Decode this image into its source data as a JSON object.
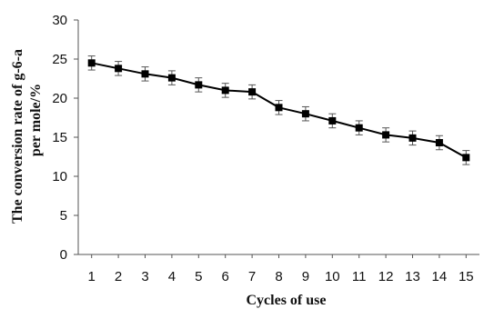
{
  "chart_data": {
    "type": "line",
    "title": "",
    "xlabel": "Cycles of use",
    "ylabel_line1": "The conversion rate of g-6-a",
    "ylabel_line2": "per mole/%",
    "x": [
      1,
      2,
      3,
      4,
      5,
      6,
      7,
      8,
      9,
      10,
      11,
      12,
      13,
      14,
      15
    ],
    "xlim": [
      0.5,
      15.5
    ],
    "ylim": [
      0,
      30
    ],
    "yticks": [
      0,
      5,
      10,
      15,
      20,
      25,
      30
    ],
    "grid": false,
    "legend": "none",
    "series": [
      {
        "values": [
          24.5,
          23.8,
          23.1,
          22.6,
          21.7,
          21.0,
          20.8,
          18.8,
          18.0,
          17.1,
          16.2,
          15.3,
          14.9,
          14.3,
          12.4
        ],
        "error": [
          0.9,
          0.9,
          0.9,
          0.9,
          0.9,
          0.9,
          0.9,
          0.9,
          0.9,
          0.9,
          0.9,
          0.9,
          0.9,
          0.9,
          0.9
        ],
        "marker": "square",
        "color": "#000000"
      }
    ]
  }
}
